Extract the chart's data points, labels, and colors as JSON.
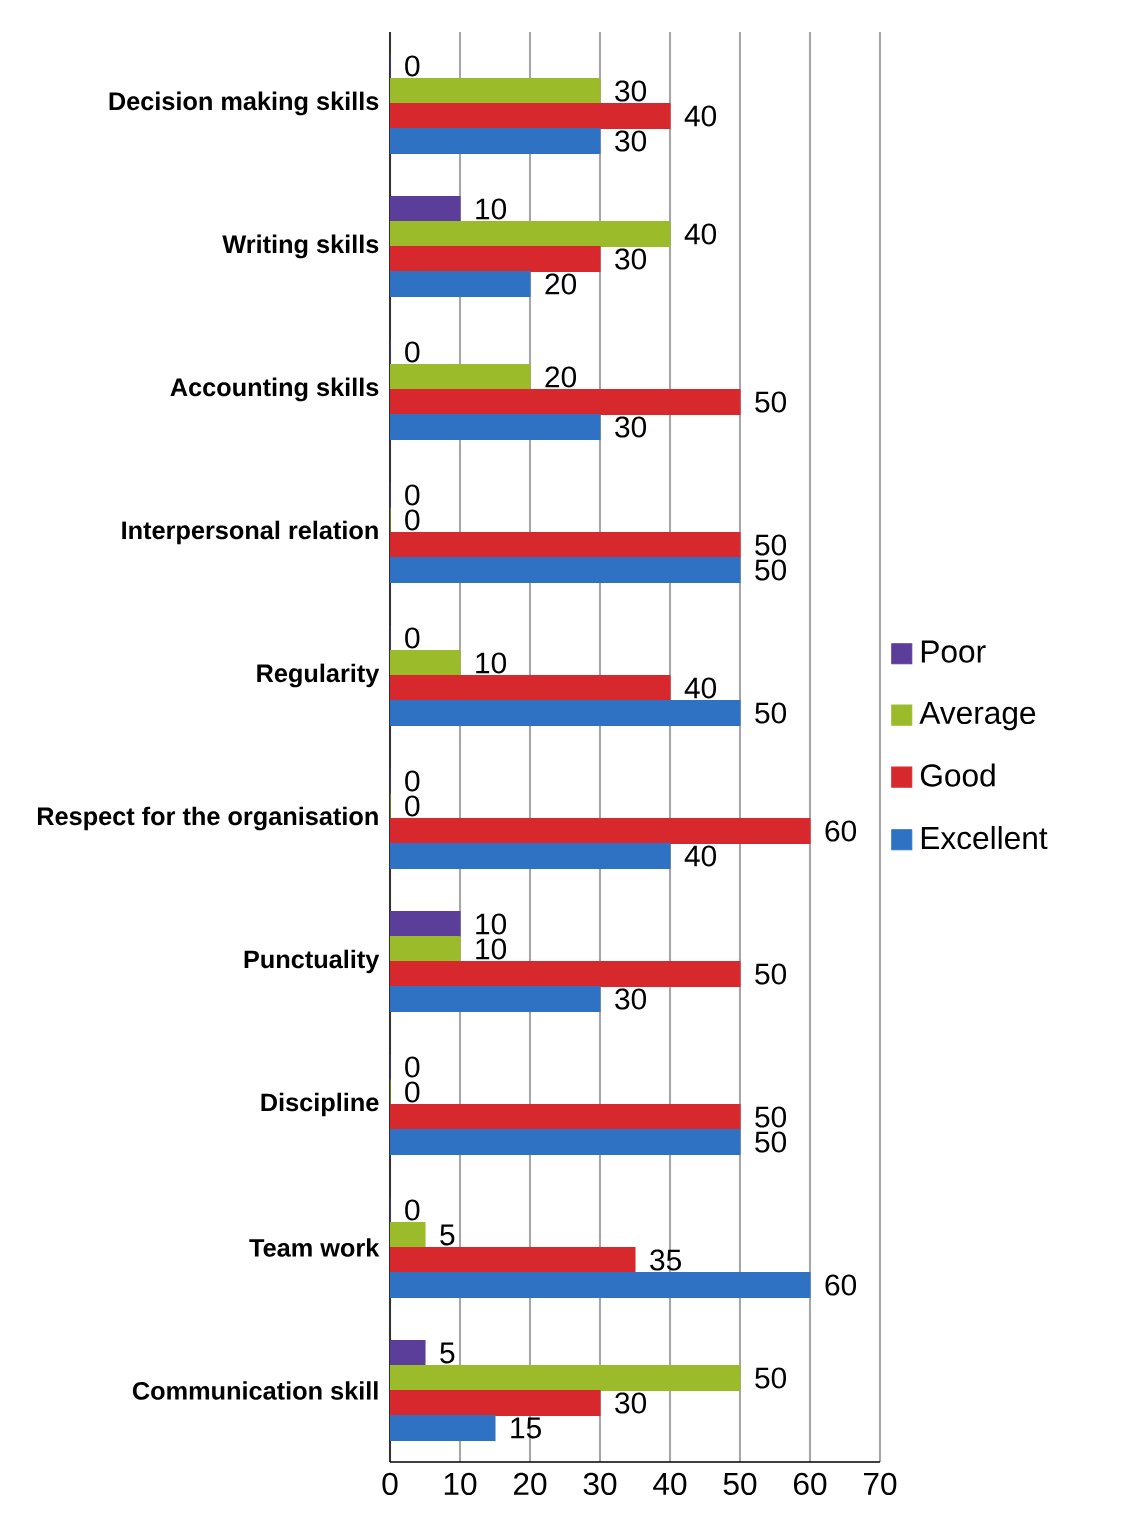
{
  "chart_data": {
    "type": "bar",
    "orientation": "horizontal",
    "categories": [
      "Decision making skills",
      "Writing skills",
      "Accounting skills",
      "Interpersonal relation",
      "Regularity",
      "Respect for the organisation",
      "Punctuality",
      "Discipline",
      "Team work",
      "Communication skill"
    ],
    "series": [
      {
        "name": "Poor",
        "color": "#5b3e9a",
        "values": [
          0,
          10,
          0,
          0,
          0,
          0,
          10,
          0,
          0,
          5
        ]
      },
      {
        "name": "Average",
        "color": "#9bbb2a",
        "values": [
          30,
          40,
          20,
          0,
          10,
          0,
          10,
          0,
          5,
          50
        ]
      },
      {
        "name": "Good",
        "color": "#d7282e",
        "values": [
          40,
          30,
          50,
          50,
          40,
          60,
          50,
          50,
          35,
          30
        ]
      },
      {
        "name": "Excellent",
        "color": "#2f72c4",
        "values": [
          30,
          20,
          30,
          50,
          50,
          40,
          30,
          50,
          60,
          15
        ]
      }
    ],
    "xlim": [
      0,
      70
    ],
    "xticks": [
      0,
      10,
      20,
      30,
      40,
      50,
      60,
      70
    ],
    "grid": "x",
    "legend": "right",
    "data_labels": true
  }
}
